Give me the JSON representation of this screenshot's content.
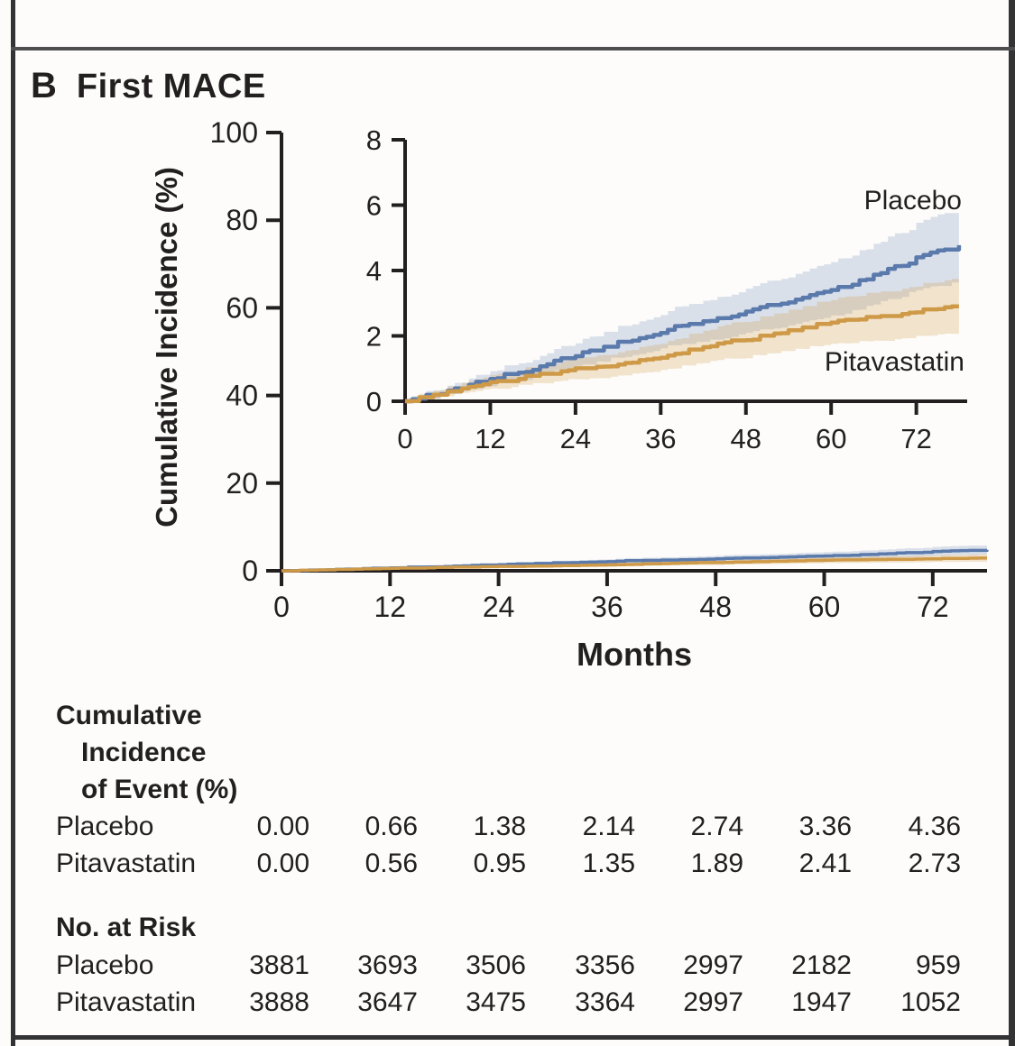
{
  "panel": {
    "label": "B",
    "title": "First MACE"
  },
  "colors": {
    "ink": "#231f20",
    "placebo_line": "#5b7aac",
    "placebo_band": "rgba(109,139,183,0.24)",
    "pitavastatin_line": "#cf9a48",
    "pitavastatin_band": "rgba(208,156,74,0.26)"
  },
  "chart_data": {
    "type": "line",
    "title": "First MACE",
    "xlabel": "Months",
    "ylabel": "Cumulative Incidence (%)",
    "legend_position": "labels-at-line-ends-inside-inset",
    "grid": false,
    "has_confidence_band": true,
    "anchor_months": [
      0,
      12,
      24,
      36,
      48,
      60,
      72,
      78
    ],
    "series": [
      {
        "name": "Placebo",
        "color": "#5b7aac",
        "band_color": "rgba(109,139,183,0.24)",
        "values": [
          0.0,
          0.66,
          1.38,
          2.14,
          2.74,
          3.36,
          4.36,
          4.75
        ]
      },
      {
        "name": "Pitavastatin",
        "color": "#cf9a48",
        "band_color": "rgba(208,156,74,0.26)",
        "values": [
          0.0,
          0.56,
          0.95,
          1.35,
          1.89,
          2.41,
          2.73,
          2.87
        ]
      }
    ],
    "main_axis": {
      "xlim": [
        0,
        78
      ],
      "ylim": [
        0,
        100
      ],
      "xticks": [
        0,
        12,
        24,
        36,
        48,
        60,
        72
      ],
      "yticks": [
        0,
        20,
        40,
        60,
        80,
        100
      ]
    },
    "inset_axis": {
      "xlim": [
        0,
        78
      ],
      "ylim": [
        0,
        8
      ],
      "xticks": [
        0,
        12,
        24,
        36,
        48,
        60,
        72
      ],
      "yticks": [
        0,
        2,
        4,
        6,
        8
      ]
    }
  },
  "table": {
    "cumulative_header_lines": [
      "Cumulative",
      "Incidence",
      "of Event (%)"
    ],
    "cumulative_rows": [
      {
        "label": "Placebo",
        "values": [
          "0.00",
          "0.66",
          "1.38",
          "2.14",
          "2.74",
          "3.36",
          "4.36"
        ]
      },
      {
        "label": "Pitavastatin",
        "values": [
          "0.00",
          "0.56",
          "0.95",
          "1.35",
          "1.89",
          "2.41",
          "2.73"
        ]
      }
    ],
    "risk_header": "No. at Risk",
    "risk_rows": [
      {
        "label": "Placebo",
        "values": [
          "3881",
          "3693",
          "3506",
          "3356",
          "2997",
          "2182",
          "959"
        ]
      },
      {
        "label": "Pitavastatin",
        "values": [
          "3888",
          "3647",
          "3475",
          "3364",
          "2997",
          "1947",
          "1052"
        ]
      }
    ]
  }
}
